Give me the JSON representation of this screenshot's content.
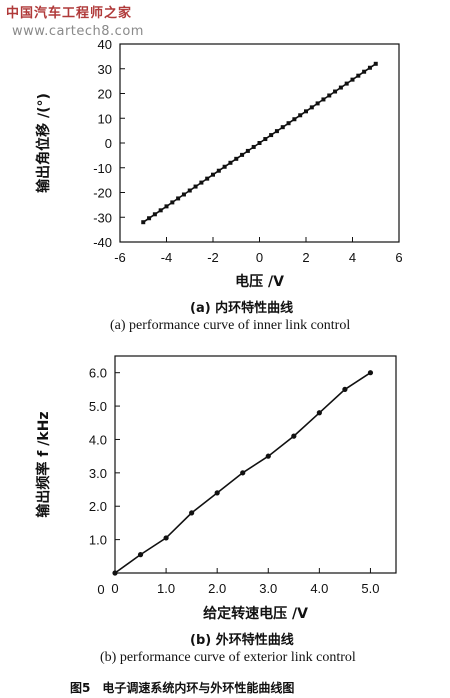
{
  "watermark": {
    "text": "中国汽车工程师之家",
    "url": "www.cartech8.com"
  },
  "figure_caption": "图5　电子调速系统内环与外环性能曲线图",
  "chart_data": [
    {
      "type": "line",
      "panel_label": "(a) 内环特性曲线",
      "title": "(a) performance curve of inner link control",
      "xlabel": "电压 /V",
      "ylabel": "输出角位移 /(°)",
      "xlim": [
        -6,
        6
      ],
      "ylim": [
        -40,
        40
      ],
      "xticks": [
        -6,
        -4,
        -2,
        0,
        2,
        4,
        6
      ],
      "yticks": [
        -40,
        -30,
        -20,
        -10,
        0,
        10,
        20,
        30,
        40
      ],
      "grid": false,
      "marker": "square",
      "series": [
        {
          "x": [
            -5.0,
            -4.75,
            -4.5,
            -4.25,
            -4.0,
            -3.75,
            -3.5,
            -3.25,
            -3.0,
            -2.75,
            -2.5,
            -2.25,
            -2.0,
            -1.75,
            -1.5,
            -1.25,
            -1.0,
            -0.75,
            -0.5,
            -0.25,
            0.0,
            0.25,
            0.5,
            0.75,
            1.0,
            1.25,
            1.5,
            1.75,
            2.0,
            2.25,
            2.5,
            2.75,
            3.0,
            3.25,
            3.5,
            3.75,
            4.0,
            4.25,
            4.5,
            4.75,
            5.0
          ],
          "y": [
            -32.0,
            -30.4,
            -28.8,
            -27.2,
            -25.6,
            -24.0,
            -22.4,
            -20.8,
            -19.2,
            -17.6,
            -16.0,
            -14.4,
            -12.8,
            -11.2,
            -9.6,
            -8.0,
            -6.4,
            -4.8,
            -3.2,
            -1.6,
            0.0,
            1.6,
            3.2,
            4.8,
            6.4,
            8.0,
            9.6,
            11.2,
            12.8,
            14.4,
            16.0,
            17.6,
            19.2,
            20.8,
            22.4,
            24.0,
            25.6,
            27.2,
            28.8,
            30.4,
            32.0
          ]
        }
      ]
    },
    {
      "type": "line",
      "panel_label": "(b) 外环特性曲线",
      "title": "(b) performance curve of exterior link control",
      "xlabel": "给定转速电压 /V",
      "ylabel": "输出频率 f /kHz",
      "xlim": [
        0,
        5.5
      ],
      "ylim": [
        0,
        6.5
      ],
      "xticks": [
        "0",
        "1.0",
        "2.0",
        "3.0",
        "4.0",
        "5.0"
      ],
      "yticks": [
        "1.0",
        "2.0",
        "3.0",
        "4.0",
        "5.0",
        "6.0"
      ],
      "grid": false,
      "marker": "circle",
      "series": [
        {
          "x": [
            0.0,
            0.5,
            1.0,
            1.5,
            2.0,
            2.5,
            3.0,
            3.5,
            4.0,
            4.5,
            5.0
          ],
          "y": [
            0.0,
            0.55,
            1.05,
            1.8,
            2.4,
            3.0,
            3.5,
            4.1,
            4.8,
            5.5,
            6.0
          ]
        }
      ]
    }
  ]
}
